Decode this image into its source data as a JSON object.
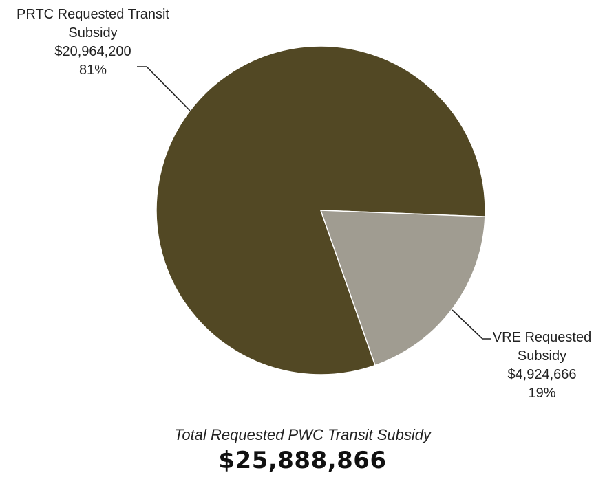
{
  "chart_data": {
    "type": "pie",
    "slices": [
      {
        "name_line1": "PRTC Requested Transit",
        "name_line2": "Subsidy",
        "value": 20964200,
        "value_label": "$20,964,200",
        "percent_label": "81%",
        "color": "#524824"
      },
      {
        "name_line1": "VRE Requested",
        "name_line2": "Subsidy",
        "value": 4924666,
        "value_label": "$4,924,666",
        "percent_label": "19%",
        "color": "#a09c91"
      }
    ],
    "total_caption": "Total Requested PWC Transit Subsidy",
    "total_value": "$25,888,866"
  }
}
